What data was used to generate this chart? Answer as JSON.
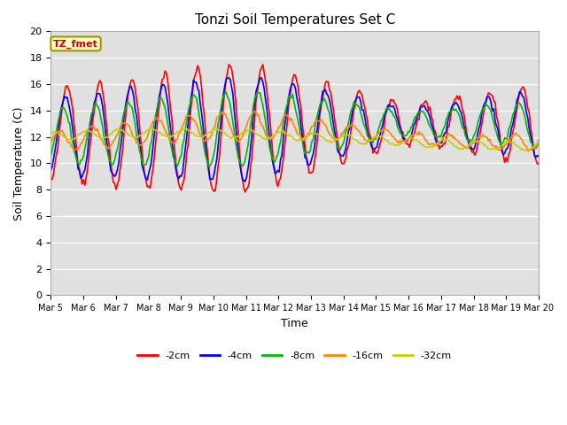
{
  "title": "Tonzi Soil Temperatures Set C",
  "xlabel": "Time",
  "ylabel": "Soil Temperature (C)",
  "ylim": [
    0,
    20
  ],
  "yticks": [
    0,
    2,
    4,
    6,
    8,
    10,
    12,
    14,
    16,
    18,
    20
  ],
  "annotation_text": "TZ_fmet",
  "annotation_color": "#cc0000",
  "annotation_bg": "#ffffcc",
  "annotation_edge": "#999900",
  "bg_color": "#e0e0e0",
  "plot_bg": "#e0e0e0",
  "grid_color": "#ffffff",
  "series_order": [
    "-2cm",
    "-4cm",
    "-8cm",
    "-16cm",
    "-32cm"
  ],
  "series": {
    "-2cm": {
      "color": "#ff0000",
      "linewidth": 1.2
    },
    "-4cm": {
      "color": "#0000ff",
      "linewidth": 1.2
    },
    "-8cm": {
      "color": "#00bb00",
      "linewidth": 1.2
    },
    "-16cm": {
      "color": "#ff8800",
      "linewidth": 1.2
    },
    "-32cm": {
      "color": "#cccc00",
      "linewidth": 1.2
    }
  },
  "x_tick_labels": [
    "Mar 5",
    "Mar 6",
    "Mar 7",
    "Mar 8",
    "Mar 9",
    "Mar 10",
    "Mar 11",
    "Mar 12",
    "Mar 13",
    "Mar 14",
    "Mar 15",
    "Mar 16",
    "Mar 17",
    "Mar 18",
    "Mar 19",
    "Mar 20"
  ],
  "num_days": 15,
  "pts_per_day": 24
}
